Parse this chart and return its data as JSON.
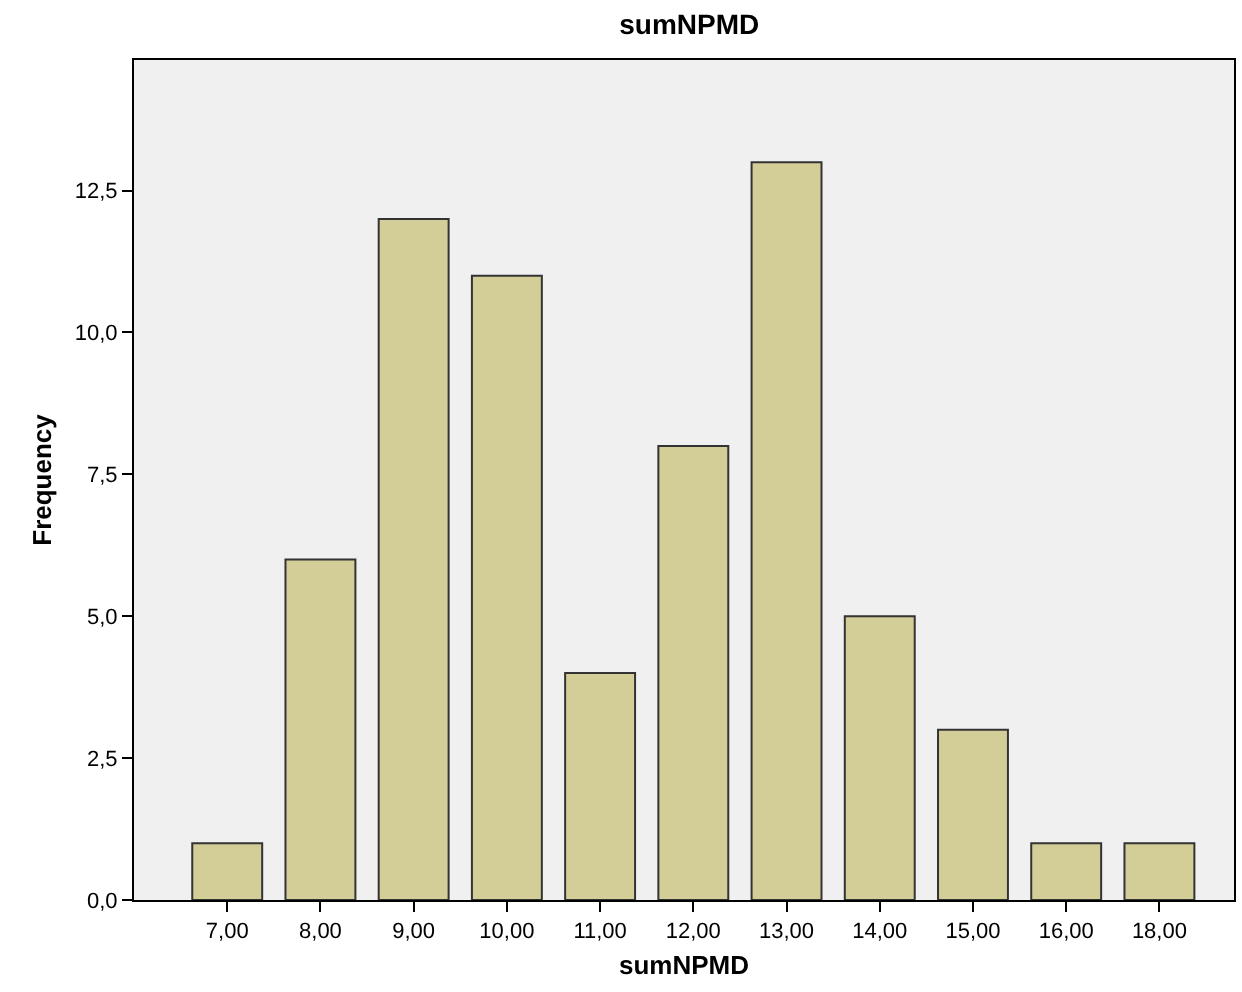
{
  "chart_data": {
    "type": "bar",
    "title": "sumNPMD",
    "xlabel": "sumNPMD",
    "ylabel": "Frequency",
    "categories": [
      "7,00",
      "8,00",
      "9,00",
      "10,00",
      "11,00",
      "12,00",
      "13,00",
      "14,00",
      "15,00",
      "16,00",
      "18,00"
    ],
    "values": [
      1,
      6,
      12,
      11,
      4,
      8,
      13,
      5,
      3,
      1,
      1
    ],
    "color": "#d3ce97",
    "ylim": [
      0,
      14.8
    ],
    "yticks": [
      {
        "value": 0,
        "label": "0,0"
      },
      {
        "value": 2.5,
        "label": "2,5"
      },
      {
        "value": 5,
        "label": "5,0"
      },
      {
        "value": 7.5,
        "label": "7,5"
      },
      {
        "value": 10,
        "label": "10,0"
      },
      {
        "value": 12.5,
        "label": "12,5"
      }
    ],
    "grid": false
  }
}
